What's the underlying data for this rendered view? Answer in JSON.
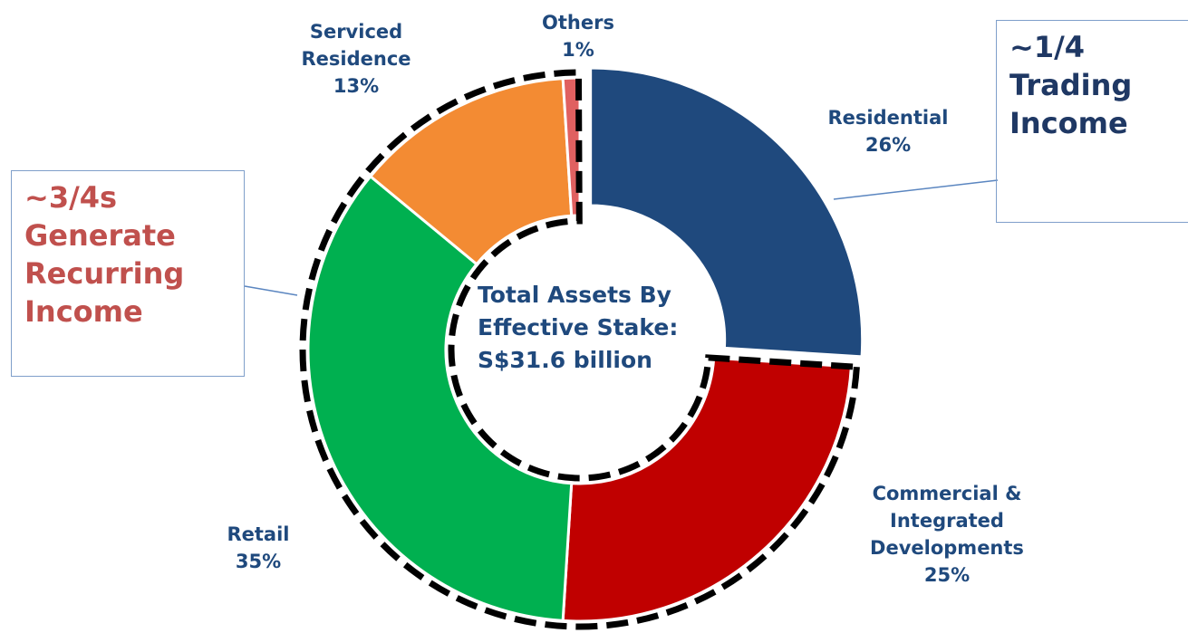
{
  "chart_data": {
    "type": "pie",
    "donut": true,
    "categories": [
      "Residential",
      "Commercial & Integrated Developments",
      "Retail",
      "Serviced Residence",
      "Others"
    ],
    "values": [
      26,
      25,
      35,
      13,
      1
    ],
    "value_labels": [
      "26%",
      "25%",
      "35%",
      "13%",
      "1%"
    ],
    "colors": [
      "#1f497d",
      "#c00000",
      "#00b050",
      "#f38b33",
      "#e06060"
    ],
    "center_text": "Total Assets By Effective Stake: S$31.6 billion",
    "annotations": [
      "~1/4 Trading Income",
      "~3/4s Generate Recurring Income"
    ]
  }
}
